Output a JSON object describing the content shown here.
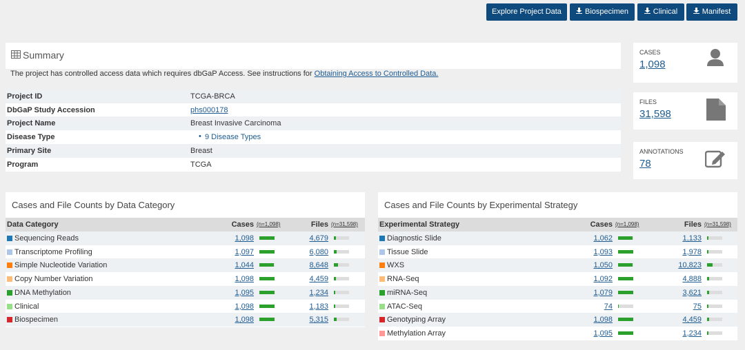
{
  "buttons": [
    "Explore Project Data",
    "Biospecimen",
    "Clinical",
    "Manifest"
  ],
  "summary": {
    "title": "Summary",
    "notice": "The project has controlled access data which requires dbGaP Access. See instructions for",
    "notice_link": "Obtaining Access to Controlled Data.",
    "rows": [
      [
        "Project ID",
        "TCGA-BRCA"
      ],
      [
        "DbGaP Study Accession",
        "phs000178"
      ],
      [
        "Project Name",
        "Breast Invasive Carcinoma"
      ],
      [
        "Disease Type",
        "9 Disease Types"
      ],
      [
        "Primary Site",
        "Breast"
      ],
      [
        "Program",
        "TCGA"
      ]
    ]
  },
  "cards": [
    {
      "label": "CASES",
      "value": "1,098"
    },
    {
      "label": "FILES",
      "value": "31,598"
    },
    {
      "label": "ANNOTATIONS",
      "value": "78"
    }
  ],
  "tables": [
    {
      "title": "Cases and File Counts by Data Category",
      "headers": [
        "Data Category",
        "Cases",
        "(n=1,098)",
        "Files",
        "(n=31,598)"
      ],
      "rows": [
        {
          "name": "Sequencing Reads",
          "color": "#1f77b4",
          "cases": "1,098",
          "files": "4,679"
        },
        {
          "name": "Transcriptome Profiling",
          "color": "#aec7e8",
          "cases": "1,097",
          "files": "6,080"
        },
        {
          "name": "Simple Nucleotide Variation",
          "color": "#ff7f0e",
          "cases": "1,044",
          "files": "8,648"
        },
        {
          "name": "Copy Number Variation",
          "color": "#ffbb78",
          "cases": "1,098",
          "files": "4,459"
        },
        {
          "name": "DNA Methylation",
          "color": "#2ca02c",
          "cases": "1,095",
          "files": "1,234"
        },
        {
          "name": "Clinical",
          "color": "#98df8a",
          "cases": "1,098",
          "files": "1,183"
        },
        {
          "name": "Biospecimen",
          "color": "#d62728",
          "cases": "1,098",
          "files": "5,315"
        }
      ]
    },
    {
      "title": "Cases and File Counts by Experimental Strategy",
      "headers": [
        "Experimental Strategy",
        "Cases",
        "(n=1,098)",
        "Files",
        "(n=31,598)"
      ],
      "rows": [
        {
          "name": "Diagnostic Slide",
          "color": "#1f77b4",
          "cases": "1,062",
          "files": "1,133"
        },
        {
          "name": "Tissue Slide",
          "color": "#aec7e8",
          "cases": "1,093",
          "files": "1,978"
        },
        {
          "name": "WXS",
          "color": "#ff7f0e",
          "cases": "1,050",
          "files": "10,823"
        },
        {
          "name": "RNA-Seq",
          "color": "#ffbb78",
          "cases": "1,092",
          "files": "4,888"
        },
        {
          "name": "miRNA-Seq",
          "color": "#2ca02c",
          "cases": "1,079",
          "files": "3,621"
        },
        {
          "name": "ATAC-Seq",
          "color": "#98df8a",
          "cases": "74",
          "files": "75"
        },
        {
          "name": "Genotyping Array",
          "color": "#d62728",
          "cases": "1,098",
          "files": "4,459"
        },
        {
          "name": "Methylation Array",
          "color": "#ff9896",
          "cases": "1,095",
          "files": "1,234"
        }
      ]
    }
  ]
}
